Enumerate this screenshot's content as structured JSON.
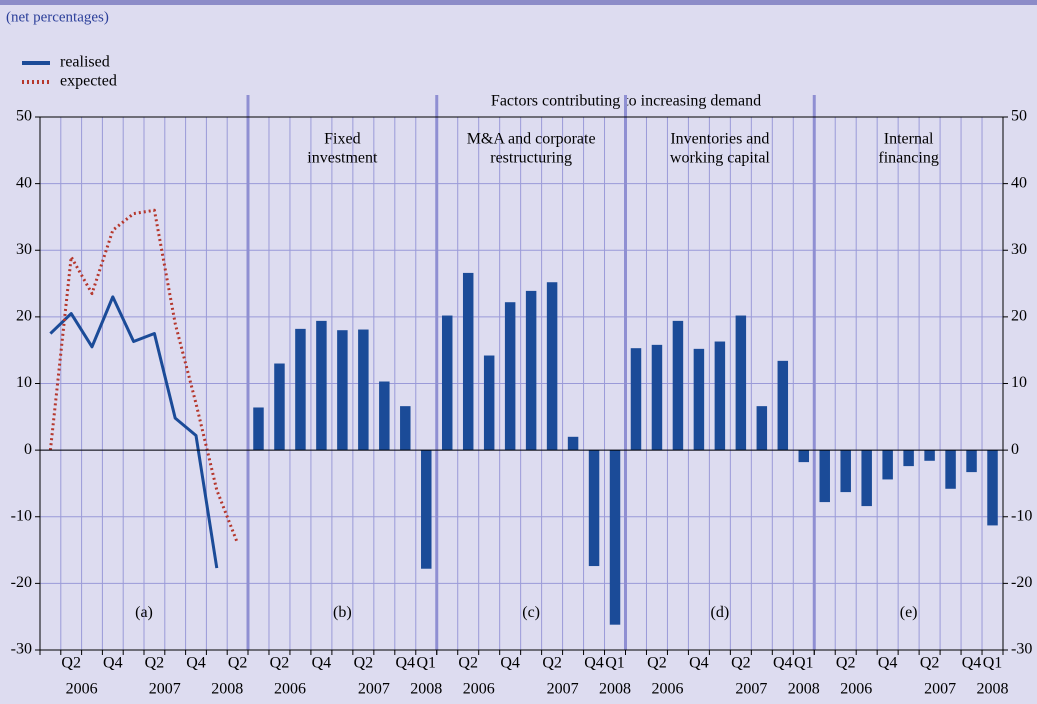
{
  "header": {
    "subtitle": "(net percentages)",
    "group_title": "Factors contributing to increasing demand"
  },
  "axis": {
    "ylim": [
      -30,
      50
    ],
    "yticks": [
      -30,
      -20,
      -10,
      0,
      10,
      20,
      30,
      40,
      50
    ]
  },
  "chart_data": [
    {
      "type": "line",
      "label": "(a)",
      "categories": [
        null,
        "Q2",
        null,
        "Q4",
        null,
        "Q2",
        null,
        "Q4",
        null,
        "Q2"
      ],
      "years": [
        "2006",
        "2007",
        "2008"
      ],
      "series": [
        {
          "name": "realised",
          "color": "#1b4b98",
          "style": "solid",
          "values": [
            17.5,
            20.5,
            15.5,
            23,
            16.3,
            17.5,
            4.8,
            2.2,
            -17.7,
            null
          ]
        },
        {
          "name": "expected",
          "color": "#b5372c",
          "style": "dotted",
          "values": [
            0,
            29,
            23.5,
            33,
            35.5,
            36,
            19,
            7,
            -6,
            -14
          ]
        }
      ]
    },
    {
      "type": "bar",
      "label": "(b)",
      "title": [
        "Fixed",
        "investment"
      ],
      "color": "#1b4b98",
      "categories": [
        null,
        "Q2",
        null,
        "Q4",
        null,
        "Q2",
        null,
        "Q4",
        "Q1"
      ],
      "years": [
        "2006",
        "2007",
        "2008"
      ],
      "values": [
        6.4,
        13,
        18.2,
        19.4,
        18,
        18.1,
        10.3,
        6.6,
        -17.8
      ]
    },
    {
      "type": "bar",
      "label": "(c)",
      "title": [
        "M&A and corporate",
        "restructuring"
      ],
      "color": "#1b4b98",
      "categories": [
        null,
        "Q2",
        null,
        "Q4",
        null,
        "Q2",
        null,
        "Q4",
        "Q1"
      ],
      "years": [
        "2006",
        "2007",
        "2008"
      ],
      "values": [
        20.2,
        26.6,
        14.2,
        22.2,
        23.9,
        25.2,
        2,
        -17.4,
        -26.2
      ]
    },
    {
      "type": "bar",
      "label": "(d)",
      "title": [
        "Inventories and",
        "working capital"
      ],
      "color": "#1b4b98",
      "categories": [
        null,
        "Q2",
        null,
        "Q4",
        null,
        "Q2",
        null,
        "Q4",
        "Q1"
      ],
      "years": [
        "2006",
        "2007",
        "2008"
      ],
      "values": [
        15.3,
        15.8,
        19.4,
        15.2,
        16.3,
        20.2,
        6.6,
        13.4,
        -1.8
      ]
    },
    {
      "type": "bar",
      "label": "(e)",
      "title": [
        "Internal",
        "financing"
      ],
      "color": "#1b4b98",
      "categories": [
        null,
        "Q2",
        null,
        "Q4",
        null,
        "Q2",
        null,
        "Q4",
        "Q1"
      ],
      "years": [
        "2006",
        "2007",
        "2008"
      ],
      "values": [
        -7.8,
        -6.3,
        -8.4,
        -4.4,
        -2.4,
        -1.6,
        -5.8,
        -3.3,
        -11.3
      ]
    }
  ]
}
